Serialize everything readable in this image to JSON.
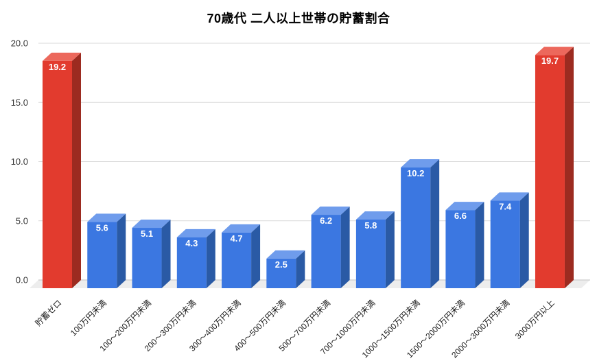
{
  "title": "70歳代 二人以上世帯の貯蓄割合",
  "chart_data": {
    "type": "bar",
    "style": "3d-column",
    "title": "70歳代 二人以上世帯の貯蓄割合",
    "categories": [
      "貯蓄ゼロ",
      "100万円未満",
      "100〜200万円未満",
      "200〜300万円未満",
      "300〜400万円未満",
      "400〜500万円未満",
      "500〜700万円未満",
      "700〜1000万円未満",
      "1000〜1500万円未満",
      "1500〜2000万円未満",
      "2000〜3000万円未満",
      "3000万円以上"
    ],
    "values": [
      19.2,
      5.6,
      5.1,
      4.3,
      4.7,
      2.5,
      6.2,
      5.8,
      10.2,
      6.6,
      7.4,
      19.7
    ],
    "value_labels": [
      "19.2",
      "5.6",
      "5.1",
      "4.3",
      "4.7",
      "2.5",
      "6.2",
      "5.8",
      "10.2",
      "6.6",
      "7.4",
      "19.7"
    ],
    "bar_color_keys": [
      "red",
      "blue",
      "blue",
      "blue",
      "blue",
      "blue",
      "blue",
      "blue",
      "blue",
      "blue",
      "blue",
      "red"
    ],
    "colors": {
      "red": {
        "front": "#e23b2e",
        "top": "#ec685c",
        "side": "#9c2b20"
      },
      "blue": {
        "front": "#3b77e1",
        "top": "#6f9cec",
        "side": "#2a5aa5"
      }
    },
    "y_ticks": [
      0,
      5,
      10,
      15,
      20
    ],
    "y_tick_labels": [
      "0.0",
      "5.0",
      "10.0",
      "15.0",
      "20.0"
    ],
    "ylim": [
      0,
      20
    ],
    "xlabel": "",
    "ylabel": "",
    "grid": true,
    "legend": "none",
    "value_label_color": "#ffffff",
    "grid_color": "#d9d9d9",
    "baseline_color": "#c2c2c2",
    "floor_color": "#ededed",
    "axis_text_color": "#333333",
    "category_text_color": "#1a1a1a"
  }
}
